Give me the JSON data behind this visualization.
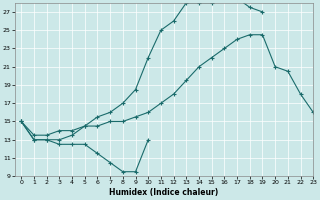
{
  "xlabel": "Humidex (Indice chaleur)",
  "xlim": [
    -0.5,
    23
  ],
  "ylim": [
    9,
    28
  ],
  "yticks": [
    9,
    11,
    13,
    15,
    17,
    19,
    21,
    23,
    25,
    27
  ],
  "xticks": [
    0,
    1,
    2,
    3,
    4,
    5,
    6,
    7,
    8,
    9,
    10,
    11,
    12,
    13,
    14,
    15,
    16,
    17,
    18,
    19,
    20,
    21,
    22,
    23
  ],
  "bg_color": "#cce8e8",
  "line_color": "#1a6b6b",
  "line1_x": [
    0,
    1,
    2,
    3,
    4,
    5,
    6,
    7,
    8,
    9,
    10
  ],
  "line1_y": [
    15,
    13,
    13,
    12.5,
    12.5,
    12.5,
    11.5,
    10.5,
    9.5,
    9.5,
    13
  ],
  "line2_x": [
    0,
    1,
    2,
    3,
    4,
    5,
    6,
    7,
    8,
    9,
    10,
    11,
    12,
    13,
    14,
    15,
    16,
    17,
    18,
    19,
    20,
    21,
    22,
    23
  ],
  "line2_y": [
    15,
    13.5,
    13.5,
    14,
    14,
    14.5,
    14.5,
    15,
    15,
    15.5,
    16,
    17,
    18,
    19.5,
    21,
    22,
    23,
    24,
    24.5,
    24.5,
    21,
    20.5,
    18,
    16
  ],
  "line3_x": [
    0,
    1,
    2,
    3,
    4,
    5,
    6,
    7,
    8,
    9,
    10,
    11,
    12,
    13,
    14,
    15,
    16,
    17,
    18,
    19
  ],
  "line3_y": [
    15,
    13,
    13,
    13,
    13.5,
    14.5,
    15.5,
    16,
    17,
    18.5,
    22,
    25,
    26,
    28,
    28,
    28,
    28.5,
    28.5,
    27.5,
    27
  ]
}
